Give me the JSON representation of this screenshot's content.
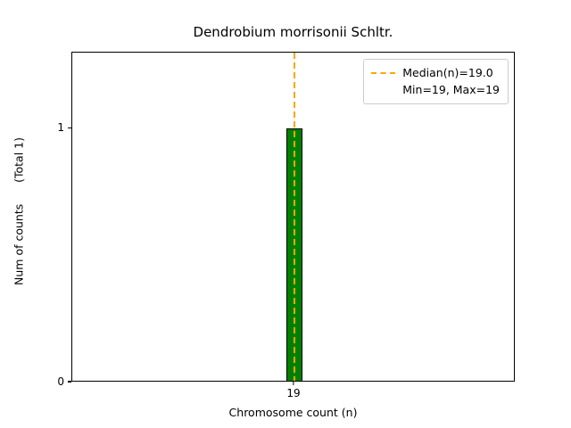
{
  "figure": {
    "title": "Dendrobium morrisonii Schltr.",
    "xlabel": "Chromosome count (n)",
    "ylabel": "Num of counts      (Total 1)"
  },
  "axis": {
    "yticks": [
      "0",
      "1"
    ],
    "xticks": [
      "19"
    ]
  },
  "legend": {
    "median_label": "Median(n)=19.0",
    "minmax_label": "Min=19, Max=19"
  },
  "colors": {
    "bar_fill": "#008000",
    "bar_edge": "#000000",
    "median_line": "#FFA500",
    "legend_border": "#cccccc",
    "text": "#000000",
    "background": "#ffffff"
  },
  "chart_data": {
    "type": "bar",
    "title": "Dendrobium morrisonii Schltr.",
    "xlabel": "Chromosome count (n)",
    "ylabel": "Num of counts      (Total 1)",
    "categories": [
      19
    ],
    "values": [
      1
    ],
    "total_counts": 1,
    "median_n": 19.0,
    "min_n": 19,
    "max_n": 19,
    "ylim": [
      0,
      1.3
    ],
    "yticks": [
      0,
      1
    ],
    "xticks": [
      19
    ],
    "grid": false,
    "legend_position": "upper right",
    "legend_entries": [
      "Median(n)=19.0",
      "Min=19, Max=19"
    ],
    "median_line_style": "dashed"
  }
}
